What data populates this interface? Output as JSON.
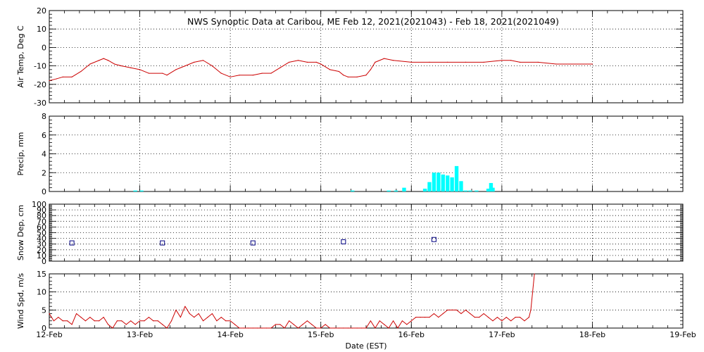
{
  "title": "NWS Synoptic Data at Caribou, ME   Feb 12, 2021(2021043) - Feb 18, 2021(2021049)",
  "xlabel": "Date (EST)",
  "date_ticks": [
    "12-Feb",
    "13-Feb",
    "14-Feb",
    "15-Feb",
    "16-Feb",
    "17-Feb",
    "18-Feb",
    "19-Feb"
  ],
  "colors": {
    "temp": "#cc0000",
    "wind": "#cc0000",
    "precip": "#00ffff",
    "snow": "#000080"
  },
  "chart_data": [
    {
      "type": "line",
      "ylabel": "Air Temp, Deg C",
      "ylim": [
        -30,
        20
      ],
      "yticks": [
        -30,
        -20,
        -10,
        0,
        10,
        20
      ],
      "grid": true,
      "x_unit": "days since 12-Feb 00:00 EST",
      "series": [
        {
          "x": [
            0,
            0.08,
            0.15,
            0.25,
            0.35,
            0.45,
            0.55,
            0.6,
            0.65,
            0.72,
            0.8,
            0.9,
            1.0,
            1.1,
            1.25,
            1.3,
            1.4,
            1.5,
            1.6,
            1.7,
            1.8,
            1.9,
            2.0,
            2.1,
            2.25,
            2.35,
            2.45,
            2.55,
            2.65,
            2.75,
            2.85,
            2.95,
            3.0,
            3.1,
            3.2,
            3.25,
            3.3,
            3.4,
            3.5,
            3.55,
            3.6,
            3.7,
            3.8,
            4.0,
            4.2,
            4.4,
            4.6,
            4.8,
            5.0,
            5.1,
            5.2,
            5.4,
            5.6,
            6.0
          ],
          "y": [
            -18,
            -17,
            -16,
            -16,
            -13,
            -9,
            -7,
            -6,
            -7,
            -9,
            -10,
            -11,
            -12,
            -14,
            -14,
            -15,
            -12,
            -10,
            -8,
            -7,
            -10,
            -14,
            -16,
            -15,
            -15,
            -14,
            -14,
            -11,
            -8,
            -7,
            -8,
            -8,
            -9,
            -12,
            -13,
            -15,
            -16,
            -16,
            -15,
            -12,
            -8,
            -6,
            -7,
            -8,
            -8,
            -8,
            -8,
            -8,
            -7,
            -7,
            -8,
            -8,
            -9,
            -9
          ]
        }
      ]
    },
    {
      "type": "bar",
      "ylabel": "Precip, mm",
      "ylim": [
        0,
        8
      ],
      "yticks": [
        0,
        2,
        4,
        6,
        8
      ],
      "grid": true,
      "x_unit": "days since 12-Feb 00:00 EST",
      "series": [
        {
          "x": [
            0.95,
            1.02,
            3.35,
            3.75,
            3.83,
            3.92,
            4.15,
            4.2,
            4.25,
            4.3,
            4.35,
            4.4,
            4.45,
            4.5,
            4.55,
            4.6,
            4.65,
            4.72,
            4.85,
            4.88,
            4.9
          ],
          "values": [
            0.1,
            0.1,
            0.1,
            0.1,
            0.1,
            0.4,
            0.3,
            1.0,
            2.0,
            2.0,
            1.8,
            1.7,
            1.5,
            2.7,
            1.1,
            0.1,
            0.1,
            0.1,
            0.3,
            0.9,
            0.4
          ]
        }
      ]
    },
    {
      "type": "scatter",
      "ylabel": "Snow Dep, cm",
      "ylim": [
        0,
        100
      ],
      "yticks": [
        0,
        10,
        20,
        30,
        40,
        50,
        60,
        70,
        80,
        90,
        100
      ],
      "grid": true,
      "x_unit": "days since 12-Feb 00:00 EST",
      "series": [
        {
          "x": [
            0.25,
            1.25,
            2.25,
            3.25,
            4.25
          ],
          "y": [
            32,
            32,
            32,
            34,
            38
          ]
        }
      ]
    },
    {
      "type": "line",
      "ylabel": "Wind Spd, m/s",
      "ylim": [
        0,
        15
      ],
      "yticks": [
        0,
        5,
        10,
        15
      ],
      "grid": true,
      "x_unit": "days since 12-Feb 00:00 EST",
      "series": [
        {
          "x": [
            0,
            0.05,
            0.1,
            0.15,
            0.2,
            0.25,
            0.3,
            0.35,
            0.4,
            0.45,
            0.5,
            0.55,
            0.6,
            0.65,
            0.7,
            0.75,
            0.8,
            0.85,
            0.9,
            0.95,
            1.0,
            1.05,
            1.1,
            1.15,
            1.2,
            1.25,
            1.3,
            1.35,
            1.4,
            1.45,
            1.5,
            1.55,
            1.6,
            1.65,
            1.7,
            1.75,
            1.8,
            1.85,
            1.9,
            1.95,
            2.0,
            2.05,
            2.1,
            2.15,
            2.2,
            2.25,
            2.3,
            2.35,
            2.4,
            2.45,
            2.5,
            2.55,
            2.6,
            2.65,
            2.7,
            2.75,
            2.8,
            2.85,
            2.9,
            2.95,
            3.0,
            3.05,
            3.1,
            3.15,
            3.2,
            3.25,
            3.3,
            3.35,
            3.4,
            3.45,
            3.5,
            3.55,
            3.6,
            3.65,
            3.7,
            3.75,
            3.8,
            3.85,
            3.9,
            3.95,
            4.0,
            4.05,
            4.1,
            4.15,
            4.2,
            4.25,
            4.3,
            4.35,
            4.4,
            4.45,
            4.5,
            4.55,
            4.6,
            4.65,
            4.7,
            4.75,
            4.8,
            4.85,
            4.9,
            4.95,
            5.0,
            5.05,
            5.1,
            5.15,
            5.2,
            5.25,
            5.3,
            5.32,
            5.34,
            5.36
          ],
          "y": [
            4,
            2,
            3,
            2,
            2,
            1,
            4,
            3,
            2,
            3,
            2,
            2,
            3,
            1,
            0,
            2,
            2,
            1,
            2,
            1,
            2,
            2,
            3,
            2,
            2,
            1,
            0,
            2,
            5,
            3,
            6,
            4,
            3,
            4,
            2,
            3,
            4,
            2,
            3,
            2,
            2,
            1,
            0,
            0,
            0,
            0,
            0,
            0,
            0,
            0,
            1,
            1,
            0,
            2,
            1,
            0,
            1,
            2,
            1,
            0,
            0,
            1,
            0,
            0,
            0,
            0,
            0,
            0,
            0,
            0,
            0,
            2,
            0,
            2,
            1,
            0,
            2,
            0,
            2,
            1,
            2,
            3,
            3,
            3,
            3,
            4,
            3,
            4,
            5,
            5,
            5,
            4,
            5,
            4,
            3,
            3,
            4,
            3,
            2,
            3,
            2,
            3,
            2,
            3,
            3,
            2,
            3,
            5,
            10,
            15
          ]
        }
      ]
    }
  ]
}
